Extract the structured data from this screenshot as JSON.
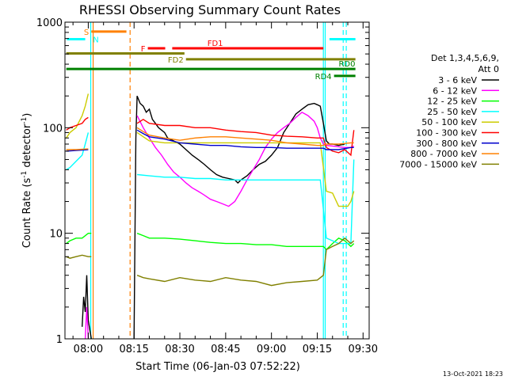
{
  "chart_data": {
    "type": "line",
    "title": "RHESSI Observing Summary Count Rates",
    "xlabel": "Start Time (06-Jan-03 07:52:22)",
    "ylabel_main": "Count Rate (s",
    "ylabel_sup1": "-1",
    "ylabel_mid": " detector",
    "ylabel_sup2": "-1",
    "ylabel_end": ")",
    "y_scale": "log",
    "ylim": [
      1,
      1000
    ],
    "xlim": [
      "07:52:22",
      "09:32:00"
    ],
    "x_ticks": [
      "08:00",
      "08:15",
      "08:30",
      "08:45",
      "09:00",
      "09:15",
      "09:30"
    ],
    "x_ticks_min": [
      480,
      495,
      510,
      525,
      540,
      555,
      570
    ],
    "y_ticks": [
      "1",
      "10",
      "100",
      "1000"
    ],
    "y_ticks_val": [
      1,
      10,
      100,
      1000
    ],
    "legend_title_1": "Det 1,3,4,5,6,9,",
    "legend_title_2": "Att 0",
    "legend_placement": "right",
    "footer": "13-Oct-2021 18:23",
    "series": [
      {
        "name": "3 - 6 keV",
        "color": "#000000",
        "points": [
          [
            472.8,
            1.2
          ],
          [
            478,
            1.3
          ],
          [
            478.5,
            2.5
          ],
          [
            479,
            1.8
          ],
          [
            479.5,
            4
          ],
          [
            480,
            1.5
          ],
          [
            481,
            1
          ],
          [
            495,
            1
          ],
          [
            495.6,
            80
          ],
          [
            496,
            200
          ],
          [
            497,
            170
          ],
          [
            498,
            160
          ],
          [
            499,
            140
          ],
          [
            500,
            150
          ],
          [
            501,
            120
          ],
          [
            502,
            110
          ],
          [
            503,
            100
          ],
          [
            504,
            95
          ],
          [
            505,
            90
          ],
          [
            506,
            80
          ],
          [
            508,
            75
          ],
          [
            510,
            70
          ],
          [
            512,
            62
          ],
          [
            514,
            55
          ],
          [
            516,
            50
          ],
          [
            518,
            45
          ],
          [
            520,
            40
          ],
          [
            522,
            36
          ],
          [
            524,
            34
          ],
          [
            526,
            33
          ],
          [
            528,
            32
          ],
          [
            529,
            30
          ],
          [
            530,
            32
          ],
          [
            532,
            35
          ],
          [
            534,
            40
          ],
          [
            536,
            45
          ],
          [
            538,
            48
          ],
          [
            540,
            55
          ],
          [
            542,
            65
          ],
          [
            544,
            90
          ],
          [
            546,
            110
          ],
          [
            548,
            135
          ],
          [
            550,
            150
          ],
          [
            552,
            165
          ],
          [
            554,
            170
          ],
          [
            555,
            165
          ],
          [
            556,
            160
          ],
          [
            557,
            110
          ],
          [
            558,
            75
          ],
          [
            559,
            70
          ],
          [
            560,
            70
          ],
          [
            562,
            68
          ],
          [
            564,
            70
          ]
        ]
      },
      {
        "name": "6 - 12 keV",
        "color": "#ff00ff",
        "points": [
          [
            479,
            1
          ],
          [
            479.5,
            2
          ],
          [
            480,
            1
          ],
          [
            496,
            130
          ],
          [
            498,
            100
          ],
          [
            500,
            80
          ],
          [
            502,
            65
          ],
          [
            504,
            55
          ],
          [
            506,
            45
          ],
          [
            508,
            38
          ],
          [
            510,
            34
          ],
          [
            512,
            30
          ],
          [
            514,
            27
          ],
          [
            516,
            25
          ],
          [
            518,
            23
          ],
          [
            520,
            21
          ],
          [
            522,
            20
          ],
          [
            524,
            19
          ],
          [
            526,
            18
          ],
          [
            528,
            20
          ],
          [
            530,
            25
          ],
          [
            532,
            32
          ],
          [
            534,
            40
          ],
          [
            536,
            50
          ],
          [
            538,
            65
          ],
          [
            540,
            78
          ],
          [
            542,
            90
          ],
          [
            544,
            100
          ],
          [
            546,
            110
          ],
          [
            548,
            125
          ],
          [
            550,
            140
          ],
          [
            552,
            130
          ],
          [
            554,
            115
          ],
          [
            555,
            100
          ],
          [
            556,
            80
          ],
          [
            557,
            70
          ],
          [
            558,
            68
          ],
          [
            560,
            67
          ],
          [
            562,
            66
          ],
          [
            564,
            65
          ],
          [
            566,
            65
          ],
          [
            567,
            67
          ]
        ]
      },
      {
        "name": "12 - 25 keV",
        "color": "#00ff00",
        "points": [
          [
            472.8,
            8
          ],
          [
            474,
            8.5
          ],
          [
            476,
            9
          ],
          [
            478,
            9
          ],
          [
            480,
            10
          ],
          [
            481,
            10
          ],
          [
            496,
            10
          ],
          [
            498,
            9.5
          ],
          [
            500,
            9
          ],
          [
            505,
            9
          ],
          [
            510,
            8.8
          ],
          [
            515,
            8.5
          ],
          [
            520,
            8.2
          ],
          [
            525,
            8
          ],
          [
            530,
            8
          ],
          [
            535,
            7.8
          ],
          [
            540,
            7.8
          ],
          [
            545,
            7.5
          ],
          [
            550,
            7.5
          ],
          [
            555,
            7.5
          ],
          [
            557,
            7.5
          ],
          [
            558,
            7
          ],
          [
            560,
            8
          ],
          [
            562,
            9
          ],
          [
            564,
            8.5
          ],
          [
            566,
            7.5
          ],
          [
            567,
            8
          ]
        ]
      },
      {
        "name": "25 - 50 keV",
        "color": "#00ffff",
        "points": [
          [
            472.8,
            40
          ],
          [
            474,
            42
          ],
          [
            476,
            48
          ],
          [
            478,
            55
          ],
          [
            479,
            70
          ],
          [
            480,
            90
          ],
          [
            496,
            36
          ],
          [
            500,
            35
          ],
          [
            505,
            34
          ],
          [
            510,
            34
          ],
          [
            515,
            33
          ],
          [
            520,
            33
          ],
          [
            525,
            32
          ],
          [
            530,
            32
          ],
          [
            535,
            32
          ],
          [
            540,
            32
          ],
          [
            545,
            32
          ],
          [
            550,
            32
          ],
          [
            555,
            32
          ],
          [
            556,
            32
          ],
          [
            558,
            9
          ],
          [
            560,
            8.5
          ],
          [
            562,
            8
          ],
          [
            566,
            8
          ],
          [
            567,
            50
          ]
        ]
      },
      {
        "name": "50 - 100 keV",
        "color": "#cccc00",
        "points": [
          [
            472.8,
            80
          ],
          [
            474,
            90
          ],
          [
            476,
            100
          ],
          [
            478,
            130
          ],
          [
            479,
            160
          ],
          [
            480,
            210
          ],
          [
            496,
            90
          ],
          [
            500,
            75
          ],
          [
            505,
            72
          ],
          [
            510,
            72
          ],
          [
            515,
            72
          ],
          [
            520,
            72
          ],
          [
            525,
            72
          ],
          [
            530,
            72
          ],
          [
            535,
            72
          ],
          [
            540,
            72
          ],
          [
            545,
            72
          ],
          [
            550,
            72
          ],
          [
            555,
            72
          ],
          [
            556,
            72
          ],
          [
            558,
            25
          ],
          [
            560,
            24
          ],
          [
            562,
            18
          ],
          [
            565,
            18
          ],
          [
            566,
            20
          ],
          [
            567,
            25
          ]
        ]
      },
      {
        "name": "100 - 300 keV",
        "color": "#ff0000",
        "points": [
          [
            472.8,
            95
          ],
          [
            474,
            100
          ],
          [
            476,
            105
          ],
          [
            478,
            110
          ],
          [
            479,
            120
          ],
          [
            480,
            125
          ],
          [
            496,
            110
          ],
          [
            498,
            120
          ],
          [
            500,
            110
          ],
          [
            505,
            105
          ],
          [
            510,
            105
          ],
          [
            515,
            100
          ],
          [
            520,
            100
          ],
          [
            525,
            95
          ],
          [
            530,
            92
          ],
          [
            535,
            90
          ],
          [
            540,
            85
          ],
          [
            545,
            83
          ],
          [
            550,
            82
          ],
          [
            555,
            80
          ],
          [
            557,
            80
          ],
          [
            558,
            65
          ],
          [
            560,
            60
          ],
          [
            562,
            58
          ],
          [
            564,
            62
          ],
          [
            566,
            55
          ],
          [
            567,
            95
          ]
        ]
      },
      {
        "name": "300 - 800 keV",
        "color": "#0000cc",
        "points": [
          [
            472.8,
            60
          ],
          [
            476,
            61
          ],
          [
            480,
            62
          ],
          [
            496,
            95
          ],
          [
            498,
            88
          ],
          [
            500,
            82
          ],
          [
            505,
            78
          ],
          [
            510,
            72
          ],
          [
            515,
            70
          ],
          [
            520,
            68
          ],
          [
            525,
            68
          ],
          [
            530,
            66
          ],
          [
            535,
            65
          ],
          [
            540,
            65
          ],
          [
            545,
            64
          ],
          [
            550,
            64
          ],
          [
            555,
            64
          ],
          [
            557,
            64
          ],
          [
            558,
            62
          ],
          [
            562,
            62
          ],
          [
            566,
            65
          ],
          [
            567,
            65
          ]
        ]
      },
      {
        "name": "800 - 7000 keV",
        "color": "#ff8000",
        "points": [
          [
            472.8,
            62
          ],
          [
            476,
            62
          ],
          [
            480,
            63
          ],
          [
            496,
            100
          ],
          [
            498,
            92
          ],
          [
            500,
            85
          ],
          [
            505,
            80
          ],
          [
            510,
            76
          ],
          [
            515,
            80
          ],
          [
            520,
            82
          ],
          [
            525,
            82
          ],
          [
            530,
            80
          ],
          [
            535,
            78
          ],
          [
            540,
            76
          ],
          [
            545,
            72
          ],
          [
            550,
            70
          ],
          [
            555,
            68
          ],
          [
            557,
            68
          ],
          [
            558,
            70
          ],
          [
            562,
            70
          ],
          [
            566,
            72
          ],
          [
            567,
            72
          ]
        ]
      },
      {
        "name": "7000 - 15000 keV",
        "color": "#808000",
        "points": [
          [
            472.8,
            6
          ],
          [
            474,
            5.8
          ],
          [
            476,
            6
          ],
          [
            478,
            6.2
          ],
          [
            480,
            6
          ],
          [
            481,
            6
          ],
          [
            496,
            4
          ],
          [
            498,
            3.8
          ],
          [
            500,
            3.7
          ],
          [
            505,
            3.5
          ],
          [
            510,
            3.8
          ],
          [
            515,
            3.6
          ],
          [
            520,
            3.5
          ],
          [
            525,
            3.8
          ],
          [
            530,
            3.6
          ],
          [
            535,
            3.5
          ],
          [
            540,
            3.2
          ],
          [
            545,
            3.4
          ],
          [
            550,
            3.5
          ],
          [
            555,
            3.6
          ],
          [
            557,
            4
          ],
          [
            558,
            7
          ],
          [
            560,
            7.5
          ],
          [
            562,
            8
          ],
          [
            564,
            9
          ],
          [
            566,
            8
          ],
          [
            567,
            8.5
          ]
        ]
      }
    ],
    "flags": [
      {
        "label": "S",
        "color": "#ff8000",
        "y": 815,
        "x0": 481.0,
        "x1": 492.5,
        "label_side": "left"
      },
      {
        "label": "N",
        "color": "#00ffff",
        "y": 690,
        "x0": 473.0,
        "x1": 479.0,
        "label_side": "right",
        "label_x": 481.5
      },
      {
        "label": "F",
        "color": "#ff0000",
        "y": 565,
        "x0": 499.5,
        "x1": 505.2,
        "label_side": "left"
      },
      {
        "label": "FD1",
        "color": "#ff0000",
        "y": 565,
        "x0": 507.5,
        "x1": 557.0,
        "label_side": "above",
        "label_x": 519.0
      },
      {
        "label": "",
        "color": "#808000",
        "y": 505,
        "x0": 472.8,
        "x1": 511.5,
        "label_side": "none"
      },
      {
        "label": "FD2",
        "color": "#808000",
        "y": 445,
        "x0": 512.0,
        "x1": 567.5,
        "label_side": "left"
      },
      {
        "label": "RD0",
        "color": "#008000",
        "y": 360,
        "x0": 472.8,
        "x1": 567.5,
        "label_side": "above",
        "label_x": 562.0
      },
      {
        "label": "RD4",
        "color": "#008000",
        "y": 310,
        "x0": 560.5,
        "x1": 567.5,
        "label_side": "left"
      },
      {
        "label": "",
        "color": "#00ffff",
        "y": 690,
        "x0": 559.0,
        "x1": 567.5,
        "label_side": "none"
      }
    ],
    "vlines": [
      {
        "x": 480.8,
        "color": "#00ffff",
        "dash": false
      },
      {
        "x": 481.6,
        "color": "#ff8000",
        "dash": false
      },
      {
        "x": 493.7,
        "color": "#ff8000",
        "dash": true
      },
      {
        "x": 557.0,
        "color": "#00ffff",
        "dash": false
      },
      {
        "x": 557.6,
        "color": "#00ffff",
        "dash": false
      },
      {
        "x": 563.5,
        "color": "#00ffff",
        "dash": true
      },
      {
        "x": 564.5,
        "color": "#00ffff",
        "dash": true
      }
    ]
  }
}
